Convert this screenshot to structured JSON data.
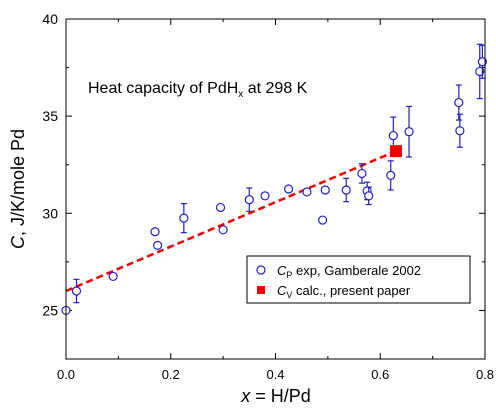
{
  "chart_data": {
    "type": "scatter",
    "title": "Heat capacity of PdH",
    "title_sub": "x",
    "title_suffix": " at 298 K",
    "xlabel_var": "x",
    "xlabel_rest": " = H/Pd",
    "ylabel_var": "C",
    "ylabel_rest": ", J/K/mole Pd",
    "xlim": [
      0.0,
      0.8
    ],
    "ylim": [
      22.5,
      40.0
    ],
    "xticks": [
      {
        "value": 0.0,
        "label": "0.0"
      },
      {
        "value": 0.2,
        "label": "0.2"
      },
      {
        "value": 0.4,
        "label": "0.4"
      },
      {
        "value": 0.6,
        "label": "0.6"
      },
      {
        "value": 0.8,
        "label": "0.8"
      }
    ],
    "yticks": [
      {
        "value": 25,
        "label": "25"
      },
      {
        "value": 30,
        "label": "30"
      },
      {
        "value": 35,
        "label": "35"
      },
      {
        "value": 40,
        "label": "40"
      }
    ],
    "legend": {
      "position": "bottom-right",
      "entries": [
        {
          "prefix": "C",
          "sub": "P",
          "text": " exp, Gamberale 2002"
        },
        {
          "prefix": "C",
          "sub": "V",
          "text": " calc., present paper"
        }
      ]
    },
    "colors": {
      "exp": "#2020c0",
      "calc": "#ee0000",
      "fit": "#ee0000"
    },
    "fit_line": {
      "x": [
        0.0,
        0.63
      ],
      "y": [
        26.0,
        33.2
      ]
    },
    "series": [
      {
        "marker": "open-circle",
        "points": [
          {
            "x": 0.0,
            "y": 25.0
          },
          {
            "x": 0.02,
            "y": 26.0,
            "err": 0.6
          },
          {
            "x": 0.09,
            "y": 26.75
          },
          {
            "x": 0.17,
            "y": 29.05
          },
          {
            "x": 0.175,
            "y": 28.35
          },
          {
            "x": 0.225,
            "y": 29.75,
            "err": 0.75
          },
          {
            "x": 0.295,
            "y": 30.3
          },
          {
            "x": 0.3,
            "y": 29.15
          },
          {
            "x": 0.35,
            "y": 30.7,
            "err": 0.6
          },
          {
            "x": 0.38,
            "y": 30.9
          },
          {
            "x": 0.425,
            "y": 31.25
          },
          {
            "x": 0.46,
            "y": 31.1
          },
          {
            "x": 0.49,
            "y": 29.65
          },
          {
            "x": 0.495,
            "y": 31.2
          },
          {
            "x": 0.535,
            "y": 31.2,
            "err": 0.6
          },
          {
            "x": 0.565,
            "y": 32.05,
            "err": 0.5
          },
          {
            "x": 0.575,
            "y": 31.15,
            "err": 0.45
          },
          {
            "x": 0.578,
            "y": 30.9,
            "err": 0.45
          },
          {
            "x": 0.62,
            "y": 31.95,
            "err": 0.75
          },
          {
            "x": 0.625,
            "y": 34.0,
            "err": 0.95
          },
          {
            "x": 0.655,
            "y": 34.2,
            "err": 1.3
          },
          {
            "x": 0.75,
            "y": 35.7,
            "err": 0.9
          },
          {
            "x": 0.752,
            "y": 34.25,
            "err": 0.85
          },
          {
            "x": 0.79,
            "y": 37.3,
            "err": 1.4
          },
          {
            "x": 0.795,
            "y": 37.8,
            "err": 0.85
          }
        ]
      },
      {
        "marker": "filled-square",
        "points": [
          {
            "x": 0.63,
            "y": 33.2
          }
        ]
      }
    ]
  }
}
